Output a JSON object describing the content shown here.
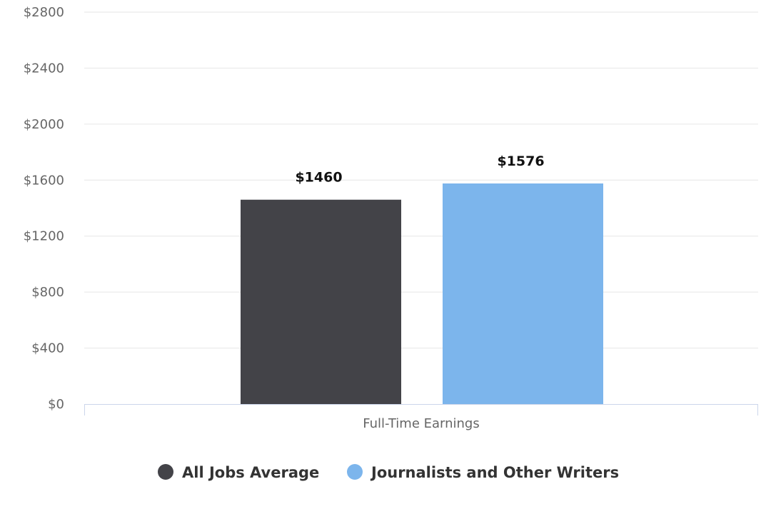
{
  "chart_data": {
    "type": "bar",
    "categories": [
      "Full-Time Earnings"
    ],
    "series": [
      {
        "name": "All Jobs Average",
        "values": [
          1460
        ],
        "color": "#434348",
        "label": "$1460"
      },
      {
        "name": "Journalists and Other Writers",
        "values": [
          1576
        ],
        "color": "#7cb5ec",
        "label": "$1576"
      }
    ],
    "ylim": [
      0,
      2800
    ],
    "yticks": [
      0,
      400,
      800,
      1200,
      1600,
      2000,
      2400,
      2800
    ],
    "ytick_labels": [
      "$0",
      "$400",
      "$800",
      "$1200",
      "$1600",
      "$2000",
      "$2400",
      "$2800"
    ],
    "grid": true,
    "legend_position": "bottom-center"
  }
}
